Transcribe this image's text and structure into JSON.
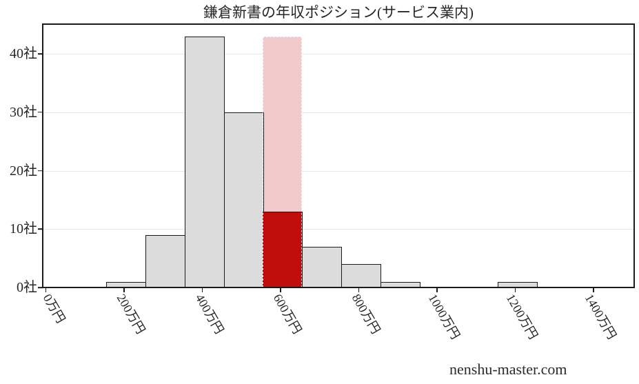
{
  "watermark": "nenshu-master.com",
  "chart_data": {
    "type": "bar",
    "subtype": "histogram",
    "title": "鎌倉新書の年収ポジション(サービス業内)",
    "x_unit": "万円",
    "y_unit": "社",
    "bin_start": 155,
    "bin_width": 100,
    "counts": [
      1,
      9,
      43,
      30,
      13,
      7,
      4,
      1,
      0,
      0,
      1
    ],
    "highlight": {
      "bin_index": 4,
      "count": 13,
      "band_top": 43
    },
    "x_tick_values": [
      0,
      200,
      400,
      600,
      800,
      1000,
      1200,
      1400
    ],
    "x_tick_labels": [
      "0万円",
      "200万円",
      "400万円",
      "600万円",
      "800万円",
      "1000万円",
      "1200万円",
      "1400万円"
    ],
    "y_tick_values": [
      0,
      10,
      20,
      30,
      40
    ],
    "y_tick_labels": [
      "0社",
      "10社",
      "20社",
      "30社",
      "40社"
    ],
    "xlim": [
      -8,
      1504
    ],
    "ylim": [
      0,
      45.1
    ],
    "grid": "horizontal",
    "legend": "none",
    "colors": {
      "bar_fill": "#dcdcdc",
      "bar_edge": "#1a1a1a",
      "highlight_fill": "#c10c0c",
      "band_fill": "#f1cbcc",
      "grid": "#e7e7e7",
      "axis": "#1a1a1a",
      "text": "#262626"
    }
  }
}
